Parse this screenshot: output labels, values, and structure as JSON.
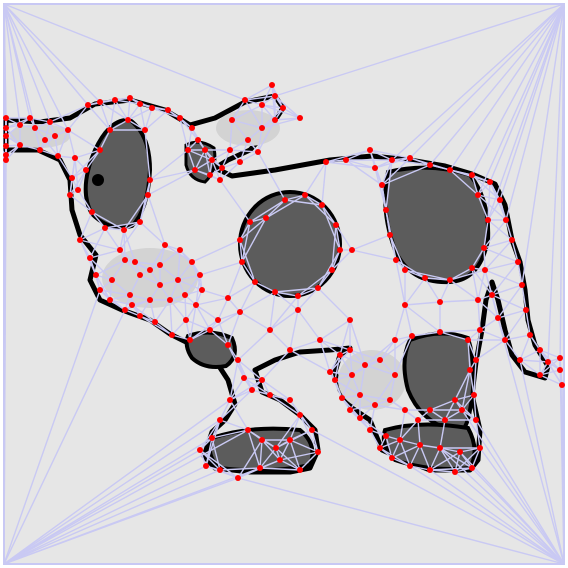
{
  "colors": {
    "background": "#e6e6e6",
    "frame": "#c8c8f4",
    "edge": "#c9c9f3",
    "region_dark": "#5c5c5c",
    "region_light": "#d3d3d3",
    "outline": "#000000",
    "vertex": "#ff0000"
  },
  "regions_dark": [
    "body-front-patch",
    "body-center-patch",
    "body-rear-patch",
    "rear-leg-patch",
    "front-hoof-patch",
    "rear-hoof-patch",
    "head-eye-patch",
    "front-leg-patch"
  ],
  "regions_light": [
    "muzzle",
    "ear-right",
    "rear-knee"
  ]
}
